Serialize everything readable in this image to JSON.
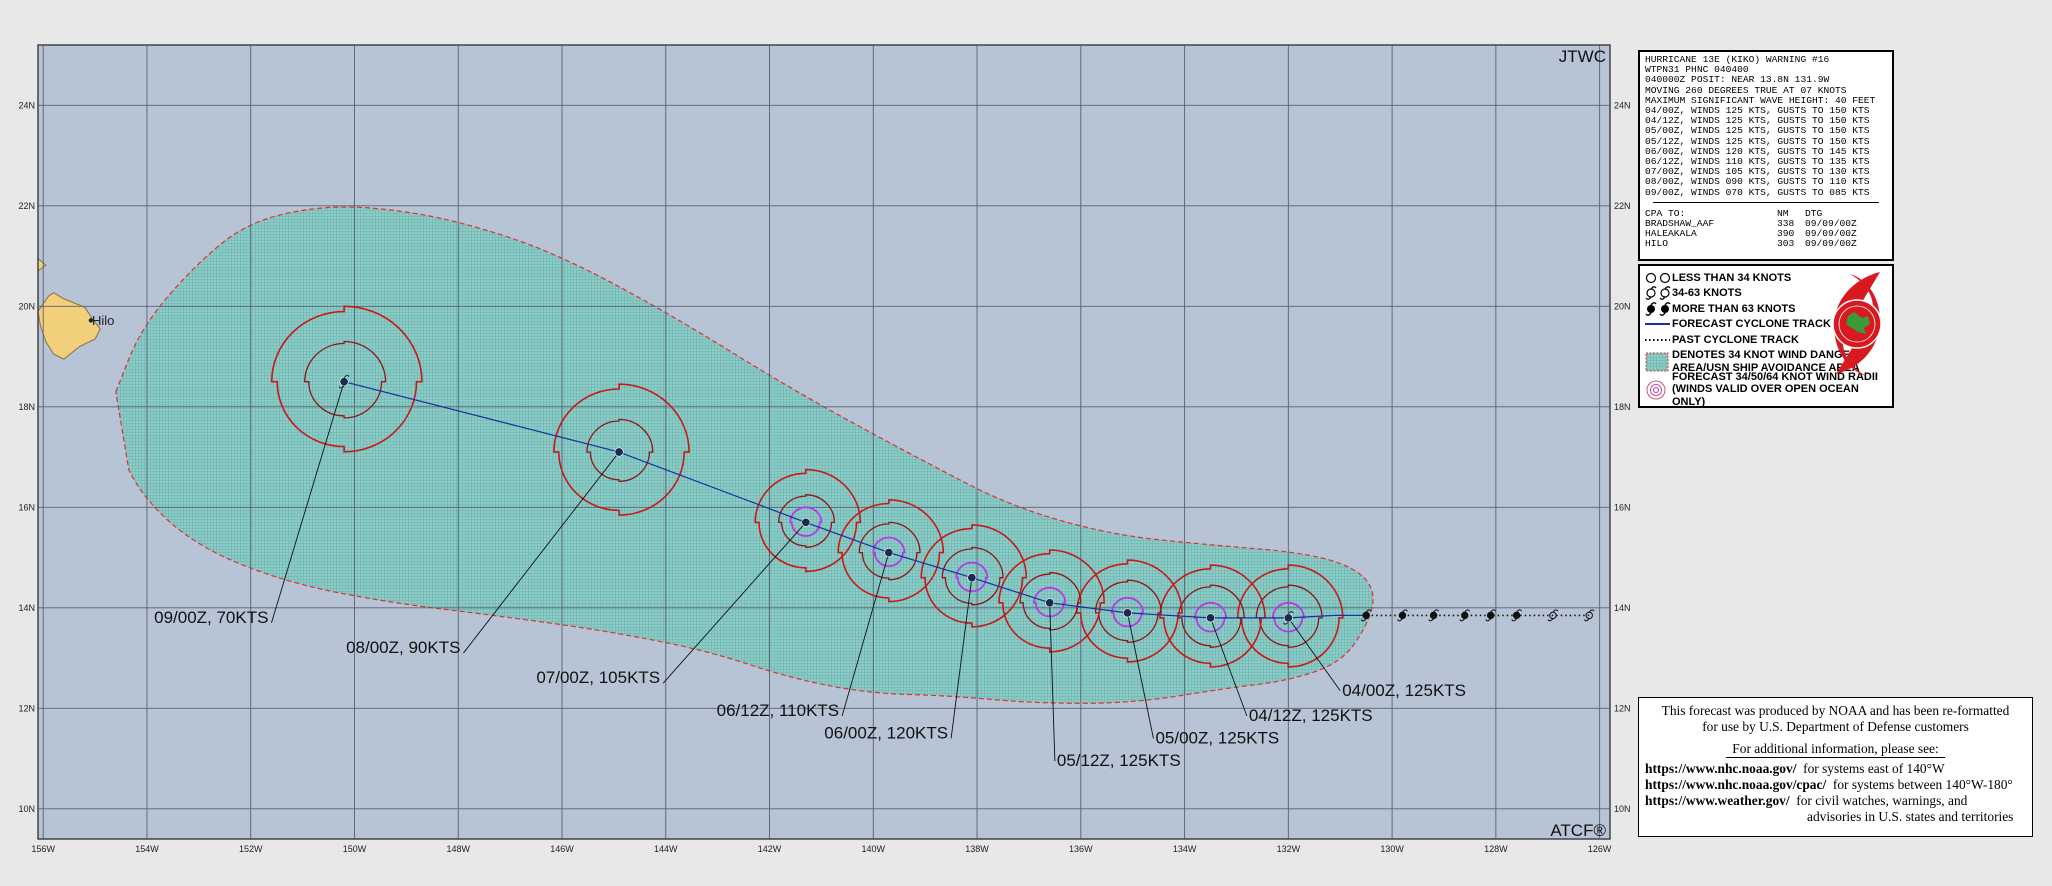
{
  "map": {
    "extent": {
      "lon_west": -156.1,
      "lon_east": -125.8,
      "lat_south": 9.4,
      "lat_north": 25.2
    },
    "lon_ticks": [
      {
        "v": -156,
        "l": "156W"
      },
      {
        "v": -154,
        "l": "154W"
      },
      {
        "v": -152,
        "l": "152W"
      },
      {
        "v": -150,
        "l": "150W"
      },
      {
        "v": -148,
        "l": "148W"
      },
      {
        "v": -146,
        "l": "146W"
      },
      {
        "v": -144,
        "l": "144W"
      },
      {
        "v": -142,
        "l": "142W"
      },
      {
        "v": -140,
        "l": "140W"
      },
      {
        "v": -138,
        "l": "138W"
      },
      {
        "v": -136,
        "l": "136W"
      },
      {
        "v": -134,
        "l": "134W"
      },
      {
        "v": -132,
        "l": "132W"
      },
      {
        "v": -130,
        "l": "130W"
      },
      {
        "v": -128,
        "l": "128W"
      },
      {
        "v": -126,
        "l": "126W"
      }
    ],
    "lat_ticks": [
      {
        "v": 10,
        "l": "10N"
      },
      {
        "v": 12,
        "l": "12N"
      },
      {
        "v": 14,
        "l": "14N"
      },
      {
        "v": 16,
        "l": "16N"
      },
      {
        "v": 18,
        "l": "18N"
      },
      {
        "v": 20,
        "l": "20N"
      },
      {
        "v": 22,
        "l": "22N"
      },
      {
        "v": 24,
        "l": "24N"
      }
    ],
    "corner_top_right": "JTWC",
    "corner_bottom_right": "ATCF®",
    "place_label": "Hilo",
    "colors": {
      "ocean": "#b6c4d6",
      "grid": "#5a6070",
      "land": "#f2cf7a",
      "danger_fill": "#86c8c4",
      "danger_edge": "#e03030",
      "radii34": "#c81818",
      "radii50": "#901515",
      "radii64": "#b838e8",
      "track": "#1a2ea0",
      "dot": "#1a2a50"
    }
  },
  "forecast_track": [
    {
      "lon": -130.5,
      "lat": 13.85
    },
    {
      "lon": -131.1,
      "lat": 13.85
    },
    {
      "lon": -132.0,
      "lat": 13.8
    },
    {
      "lon": -133.5,
      "lat": 13.8
    },
    {
      "lon": -135.1,
      "lat": 13.9
    },
    {
      "lon": -136.6,
      "lat": 14.1
    },
    {
      "lon": -138.1,
      "lat": 14.6
    },
    {
      "lon": -139.7,
      "lat": 15.1
    },
    {
      "lon": -141.3,
      "lat": 15.7
    },
    {
      "lon": -144.9,
      "lat": 17.1
    },
    {
      "lon": -150.2,
      "lat": 18.5
    }
  ],
  "past_track": [
    {
      "lon": -126.2,
      "lat": 13.85
    },
    {
      "lon": -126.9,
      "lat": 13.85
    },
    {
      "lon": -127.6,
      "lat": 13.85
    },
    {
      "lon": -128.1,
      "lat": 13.85
    },
    {
      "lon": -128.6,
      "lat": 13.85
    },
    {
      "lon": -129.2,
      "lat": 13.85
    },
    {
      "lon": -129.8,
      "lat": 13.85
    },
    {
      "lon": -130.5,
      "lat": 13.85
    }
  ],
  "forecast_points": [
    {
      "label": "04/00Z, 125KTS",
      "lon": -132.0,
      "lat": 13.8,
      "r34": 1.05,
      "r50": 0.65,
      "r64": 0.3,
      "lab_lon": -131.0,
      "lab_lat": 12.35
    },
    {
      "label": "04/12Z, 125KTS",
      "lon": -133.5,
      "lat": 13.8,
      "r34": 1.05,
      "r50": 0.65,
      "r64": 0.3,
      "lab_lon": -132.8,
      "lab_lat": 11.85
    },
    {
      "label": "05/00Z, 125KTS",
      "lon": -135.1,
      "lat": 13.9,
      "r34": 1.05,
      "r50": 0.65,
      "r64": 0.3,
      "lab_lon": -134.6,
      "lab_lat": 11.4
    },
    {
      "label": "05/12Z, 125KTS",
      "lon": -136.6,
      "lat": 14.1,
      "r34": 1.05,
      "r50": 0.6,
      "r64": 0.3,
      "lab_lon": -136.5,
      "lab_lat": 10.95
    },
    {
      "label": "06/00Z, 120KTS",
      "lon": -138.1,
      "lat": 14.6,
      "r34": 1.05,
      "r50": 0.6,
      "r64": 0.3,
      "lab_lon": -138.5,
      "lab_lat": 11.4
    },
    {
      "label": "06/12Z, 110KTS",
      "lon": -139.7,
      "lat": 15.1,
      "r34": 1.05,
      "r50": 0.6,
      "r64": 0.3,
      "lab_lon": -140.6,
      "lab_lat": 11.85
    },
    {
      "label": "07/00Z, 105KTS",
      "lon": -141.3,
      "lat": 15.7,
      "r34": 1.05,
      "r50": 0.55,
      "r64": 0.3,
      "lab_lon": -144.05,
      "lab_lat": 12.5
    },
    {
      "label": "08/00Z, 90KTS",
      "lon": -144.9,
      "lat": 17.1,
      "r34": 1.35,
      "r50": 0.65,
      "r64": 0,
      "lab_lon": -147.9,
      "lab_lat": 13.1
    },
    {
      "label": "09/00Z, 70KTS",
      "lon": -150.2,
      "lat": 18.5,
      "r34": 1.5,
      "r50": 0.8,
      "r64": 0,
      "lab_lon": -151.6,
      "lab_lat": 13.7
    }
  ],
  "warning": {
    "lines": [
      "HURRICANE 13E (KIKO) WARNING #16",
      "WTPN31 PHNC 040400",
      "040000Z POSIT: NEAR 13.8N 131.9W",
      "MOVING 260 DEGREES TRUE AT 07 KNOTS",
      "MAXIMUM SIGNIFICANT WAVE HEIGHT: 40 FEET",
      "04/00Z, WINDS 125 KTS, GUSTS TO 150 KTS",
      "04/12Z, WINDS 125 KTS, GUSTS TO 150 KTS",
      "05/00Z, WINDS 125 KTS, GUSTS TO 150 KTS",
      "05/12Z, WINDS 125 KTS, GUSTS TO 150 KTS",
      "06/00Z, WINDS 120 KTS, GUSTS TO 145 KTS",
      "06/12Z, WINDS 110 KTS, GUSTS TO 135 KTS",
      "07/00Z, WINDS 105 KTS, GUSTS TO 130 KTS",
      "08/00Z, WINDS 090 KTS, GUSTS TO 110 KTS",
      "09/00Z, WINDS 070 KTS, GUSTS TO 085 KTS"
    ],
    "cpa_header": [
      "CPA TO:",
      "NM",
      "DTG"
    ],
    "cpa_rows": [
      [
        "BRADSHAW_AAF",
        "338",
        "09/09/00Z"
      ],
      [
        "HALEAKALA",
        "390",
        "09/09/00Z"
      ],
      [
        "HILO",
        "303",
        "09/09/00Z"
      ]
    ]
  },
  "legend": {
    "items": [
      "LESS THAN 34 KNOTS",
      "34-63 KNOTS",
      "MORE THAN 63 KNOTS",
      "FORECAST CYCLONE TRACK",
      "PAST CYCLONE TRACK"
    ],
    "danger_line1": "DENOTES 34 KNOT WIND DANGER",
    "danger_line2": "AREA/USN SHIP AVOIDANCE AREA",
    "radii_line1": "FORECAST 34/50/64 KNOT WIND RADII",
    "radii_line2": "(WINDS VALID OVER OPEN OCEAN ONLY)"
  },
  "credit": {
    "line1": "This forecast was produced by NOAA and has been re-formatted",
    "line2": "for use by U.S. Department of Defense customers",
    "additional": "For additional information, please see:",
    "links": [
      {
        "url": "https://www.nhc.noaa.gov/",
        "desc": "for systems east of 140°W"
      },
      {
        "url": "https://www.nhc.noaa.gov/cpac/",
        "desc": "for systems between 140°W-180°"
      },
      {
        "url": "https://www.weather.gov/",
        "desc": "for civil watches, warnings, and"
      }
    ],
    "last_line": "advisories in U.S. states and territories"
  }
}
